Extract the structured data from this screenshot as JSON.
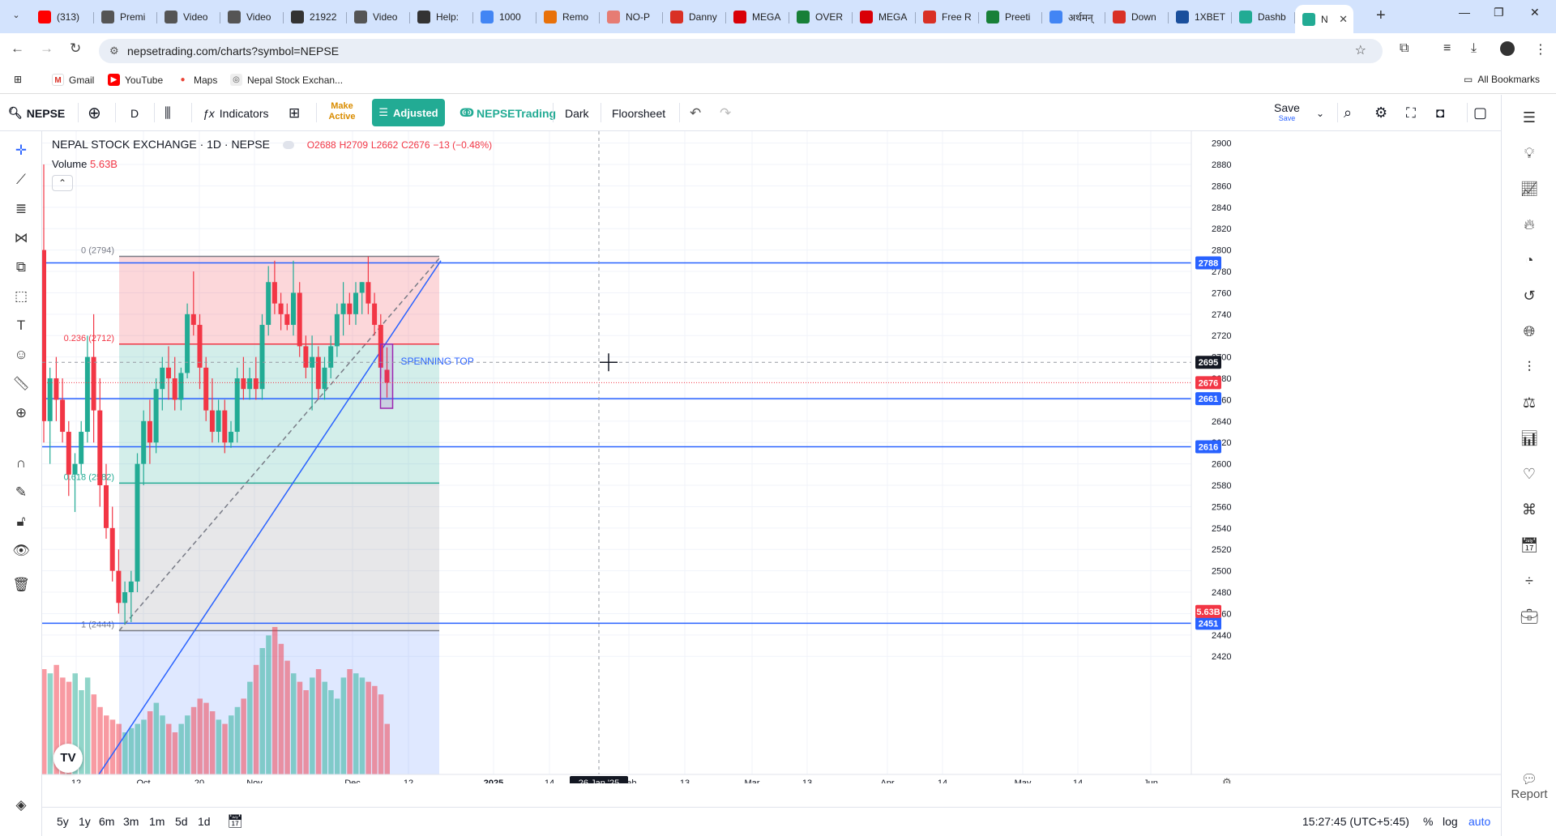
{
  "browser": {
    "tabs": [
      {
        "label": "(313)",
        "icon": "youtube-icon",
        "color": "#ff0000"
      },
      {
        "label": "Premi",
        "icon": "video-icon",
        "color": "#555"
      },
      {
        "label": "Video",
        "icon": "video-icon",
        "color": "#555"
      },
      {
        "label": "Video",
        "icon": "video-icon",
        "color": "#555"
      },
      {
        "label": "21922",
        "icon": "page-icon",
        "color": "#333"
      },
      {
        "label": "Video",
        "icon": "video-icon",
        "color": "#555"
      },
      {
        "label": "Help:",
        "icon": "help-icon",
        "color": "#333"
      },
      {
        "label": "1000",
        "icon": "google-icon",
        "color": "#4285f4"
      },
      {
        "label": "Remo",
        "icon": "page-icon",
        "color": "#e8710a"
      },
      {
        "label": "NO-P",
        "icon": "page-icon",
        "color": "#e67c73"
      },
      {
        "label": "Danny",
        "icon": "page-icon",
        "color": "#d93025"
      },
      {
        "label": "MEGA",
        "icon": "mega-icon",
        "color": "#d90007"
      },
      {
        "label": "OVER",
        "icon": "drive-icon",
        "color": "#188038"
      },
      {
        "label": "MEGA",
        "icon": "mega-icon",
        "color": "#d90007"
      },
      {
        "label": "Free R",
        "icon": "page-icon",
        "color": "#d93025"
      },
      {
        "label": "Preeti",
        "icon": "page-icon",
        "color": "#188038"
      },
      {
        "label": "अर्थमन्",
        "icon": "google-icon",
        "color": "#4285f4"
      },
      {
        "label": "Down",
        "icon": "x-icon",
        "color": "#d93025"
      },
      {
        "label": "1XBET",
        "icon": "page-icon",
        "color": "#1a4f9c"
      },
      {
        "label": "Dashb",
        "icon": "nepse-icon",
        "color": "#22ab94"
      },
      {
        "label": "N",
        "icon": "nepse-icon",
        "color": "#22ab94",
        "active": true
      }
    ],
    "url": "nepsetrading.com/charts?symbol=NEPSE",
    "bookmarks": [
      "Gmail",
      "YouTube",
      "Maps",
      "Nepal Stock Exchan..."
    ],
    "all_bookmarks": "All Bookmarks"
  },
  "toolbar": {
    "symbol": "NEPSE",
    "interval": "D",
    "indicators": "Indicators",
    "make_active": "Make Active",
    "adjusted": "Adjusted",
    "brand": "NEPSETrading",
    "dark": "Dark",
    "floorsheet": "Floorsheet",
    "save": "Save",
    "save_sub": "Save"
  },
  "legend": {
    "title": "NEPAL STOCK EXCHANGE · 1D · NEPSE",
    "o": "O2688",
    "h": "H2709",
    "l": "L2662",
    "c": "C2676",
    "chg": "−13 (−0.48%)",
    "volume_label": "Volume",
    "volume_value": "5.63B"
  },
  "chart_data": {
    "type": "candlestick",
    "symbol": "NEPSE",
    "interval": "1D",
    "ylim": [
      2410,
      2905
    ],
    "yticks": [
      2900,
      2880,
      2860,
      2840,
      2820,
      2800,
      2780,
      2760,
      2740,
      2720,
      2700,
      2680,
      2660,
      2640,
      2620,
      2600,
      2580,
      2560,
      2540,
      2520,
      2500,
      2480,
      2460,
      2440,
      2420
    ],
    "xticks": [
      "12",
      "Oct",
      "20",
      "Nov",
      "Dec",
      "12",
      "2025",
      "14",
      "Feb",
      "13",
      "Mar",
      "13",
      "Apr",
      "14",
      "May",
      "14",
      "Jun"
    ],
    "crosshair_x_label": "26 Jan '25",
    "crosshair_price": "2695",
    "last_price": "2676",
    "volume_badge": "5.63B",
    "hlines": [
      {
        "price": 2788,
        "label": "2788"
      },
      {
        "price": 2661,
        "label": "2661"
      },
      {
        "price": 2616,
        "label": "2616"
      },
      {
        "price": 2451,
        "label": "2451"
      }
    ],
    "fib": [
      {
        "label": "0 (2794)",
        "price": 2794
      },
      {
        "label": "0.236 (2712)",
        "price": 2712
      },
      {
        "label": "0.618 (2582)",
        "price": 2582
      },
      {
        "label": "1 (2444)",
        "price": 2444
      }
    ],
    "annotation": "SPENNING TOP",
    "candles": [
      [
        2800,
        2880,
        2620,
        2640
      ],
      [
        2640,
        2690,
        2600,
        2680
      ],
      [
        2680,
        2700,
        2640,
        2660
      ],
      [
        2660,
        2680,
        2620,
        2630
      ],
      [
        2630,
        2640,
        2570,
        2590
      ],
      [
        2590,
        2610,
        2555,
        2600
      ],
      [
        2600,
        2640,
        2590,
        2630
      ],
      [
        2630,
        2720,
        2620,
        2700
      ],
      [
        2700,
        2740,
        2620,
        2650
      ],
      [
        2650,
        2680,
        2560,
        2580
      ],
      [
        2580,
        2600,
        2530,
        2540
      ],
      [
        2540,
        2560,
        2490,
        2500
      ],
      [
        2500,
        2520,
        2460,
        2470
      ],
      [
        2470,
        2490,
        2450,
        2480
      ],
      [
        2480,
        2500,
        2452,
        2490
      ],
      [
        2490,
        2610,
        2480,
        2600
      ],
      [
        2600,
        2650,
        2580,
        2640
      ],
      [
        2640,
        2660,
        2600,
        2620
      ],
      [
        2620,
        2680,
        2610,
        2670
      ],
      [
        2670,
        2700,
        2650,
        2690
      ],
      [
        2690,
        2710,
        2660,
        2680
      ],
      [
        2680,
        2700,
        2650,
        2660
      ],
      [
        2660,
        2690,
        2650,
        2685
      ],
      [
        2685,
        2750,
        2680,
        2740
      ],
      [
        2740,
        2780,
        2720,
        2730
      ],
      [
        2730,
        2740,
        2670,
        2690
      ],
      [
        2690,
        2700,
        2640,
        2650
      ],
      [
        2650,
        2680,
        2620,
        2630
      ],
      [
        2630,
        2660,
        2620,
        2650
      ],
      [
        2650,
        2660,
        2610,
        2620
      ],
      [
        2620,
        2640,
        2615,
        2630
      ],
      [
        2630,
        2690,
        2620,
        2680
      ],
      [
        2680,
        2700,
        2660,
        2670
      ],
      [
        2670,
        2690,
        2660,
        2680
      ],
      [
        2680,
        2700,
        2660,
        2670
      ],
      [
        2670,
        2740,
        2660,
        2730
      ],
      [
        2730,
        2785,
        2720,
        2770
      ],
      [
        2770,
        2790,
        2740,
        2750
      ],
      [
        2750,
        2760,
        2725,
        2740
      ],
      [
        2740,
        2750,
        2725,
        2730
      ],
      [
        2730,
        2790,
        2720,
        2760
      ],
      [
        2760,
        2770,
        2700,
        2710
      ],
      [
        2710,
        2720,
        2680,
        2690
      ],
      [
        2690,
        2720,
        2650,
        2700
      ],
      [
        2700,
        2710,
        2660,
        2670
      ],
      [
        2670,
        2700,
        2660,
        2690
      ],
      [
        2690,
        2720,
        2680,
        2710
      ],
      [
        2710,
        2750,
        2700,
        2740
      ],
      [
        2740,
        2770,
        2720,
        2750
      ],
      [
        2750,
        2760,
        2730,
        2740
      ],
      [
        2740,
        2770,
        2730,
        2760
      ],
      [
        2760,
        2770,
        2740,
        2770
      ],
      [
        2770,
        2794,
        2740,
        2750
      ],
      [
        2750,
        2760,
        2720,
        2730
      ],
      [
        2730,
        2740,
        2680,
        2690
      ],
      [
        2688,
        2709,
        2662,
        2676
      ]
    ],
    "volumes": [
      0.25,
      0.24,
      0.26,
      0.23,
      0.22,
      0.24,
      0.2,
      0.23,
      0.19,
      0.16,
      0.14,
      0.13,
      0.12,
      0.1,
      0.11,
      0.12,
      0.13,
      0.15,
      0.17,
      0.14,
      0.12,
      0.1,
      0.12,
      0.14,
      0.16,
      0.18,
      0.17,
      0.15,
      0.13,
      0.12,
      0.14,
      0.16,
      0.18,
      0.22,
      0.26,
      0.3,
      0.33,
      0.35,
      0.31,
      0.27,
      0.24,
      0.22,
      0.2,
      0.23,
      0.25,
      0.22,
      0.2,
      0.18,
      0.23,
      0.25,
      0.24,
      0.23,
      0.22,
      0.21,
      0.19,
      0.12
    ]
  },
  "bottom": {
    "ranges": [
      "5y",
      "1y",
      "6m",
      "3m",
      "1m",
      "5d",
      "1d"
    ],
    "time": "15:27:45 (UTC+5:45)",
    "pct": "%",
    "log": "log",
    "auto": "auto"
  },
  "sidebar": {
    "report": "Report"
  }
}
